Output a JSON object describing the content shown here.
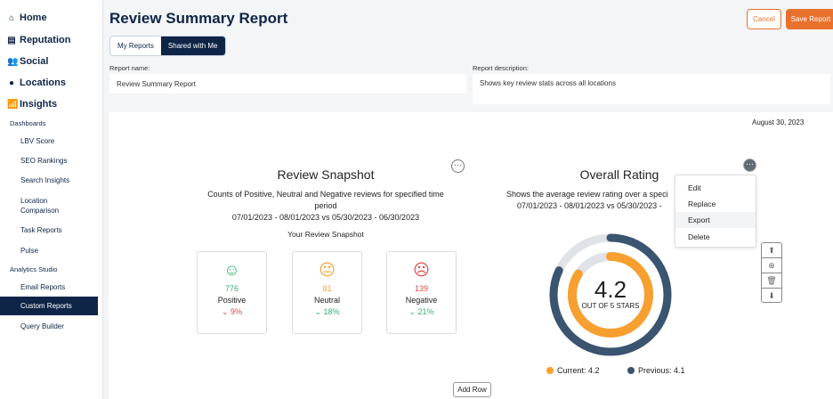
{
  "sidebar": {
    "items": [
      {
        "label": "Home",
        "icon": "home-icon"
      },
      {
        "label": "Reputation",
        "icon": "chat-icon"
      },
      {
        "label": "Social",
        "icon": "users-icon"
      },
      {
        "label": "Locations",
        "icon": "pin-icon"
      },
      {
        "label": "Insights",
        "icon": "chart-icon"
      }
    ],
    "dashboards_label": "Dashboards",
    "dashboards": [
      "LBV Score",
      "SEO Rankings",
      "Search Insights",
      "Location Comparison",
      "Task Reports",
      "Pulse"
    ],
    "studio_label": "Analytics Studio",
    "studio": [
      "Email Reports",
      "Custom Reports",
      "Query Builder"
    ],
    "active": "Custom Reports"
  },
  "header": {
    "title": "Review Summary Report",
    "cancel": "Cancel",
    "save": "Save Report",
    "tabs": [
      "My Reports",
      "Shared with Me"
    ],
    "active_tab": "Shared with Me"
  },
  "form": {
    "name_label": "Report name:",
    "name_value": "Review Summary Report",
    "desc_label": "Report description:",
    "desc_value": "Shows key review stats across all locations"
  },
  "date": "August 30, 2023",
  "snapshot": {
    "title": "Review Snapshot",
    "desc1": "Counts of Positive, Neutral and Negative reviews for specified time",
    "desc2": "period",
    "range": "07/01/2023 - 08/01/2023 vs 05/30/2023 - 06/30/2023",
    "subtitle": "Your Review Snapshot",
    "cards": [
      {
        "label": "Positive",
        "count": "776",
        "change": "9%",
        "direction": "down",
        "color": "#2bb673",
        "change_color": "#e04848"
      },
      {
        "label": "Neutral",
        "count": "81",
        "change": "18%",
        "direction": "down",
        "color": "#f7a23b",
        "change_color": "#2bb673"
      },
      {
        "label": "Negative",
        "count": "139",
        "change": "21%",
        "direction": "down",
        "color": "#e04848",
        "change_color": "#2bb673"
      }
    ]
  },
  "rating": {
    "title": "Overall Rating",
    "desc": "Shows the average review rating over a speci",
    "range": "07/01/2023 - 08/01/2023 vs 05/30/2023 -",
    "value": "4.2",
    "out_of": "OUT OF 5 STARS",
    "current": 4.2,
    "previous": 4.1,
    "max": 5,
    "current_label": "Current: 4.2",
    "previous_label": "Previous: 4.1",
    "current_color": "#f7a030",
    "previous_color": "#3b5470"
  },
  "menu": {
    "items": [
      "Edit",
      "Replace",
      "Export",
      "Delete"
    ],
    "highlighted": "Export"
  },
  "add_row": "Add Row"
}
